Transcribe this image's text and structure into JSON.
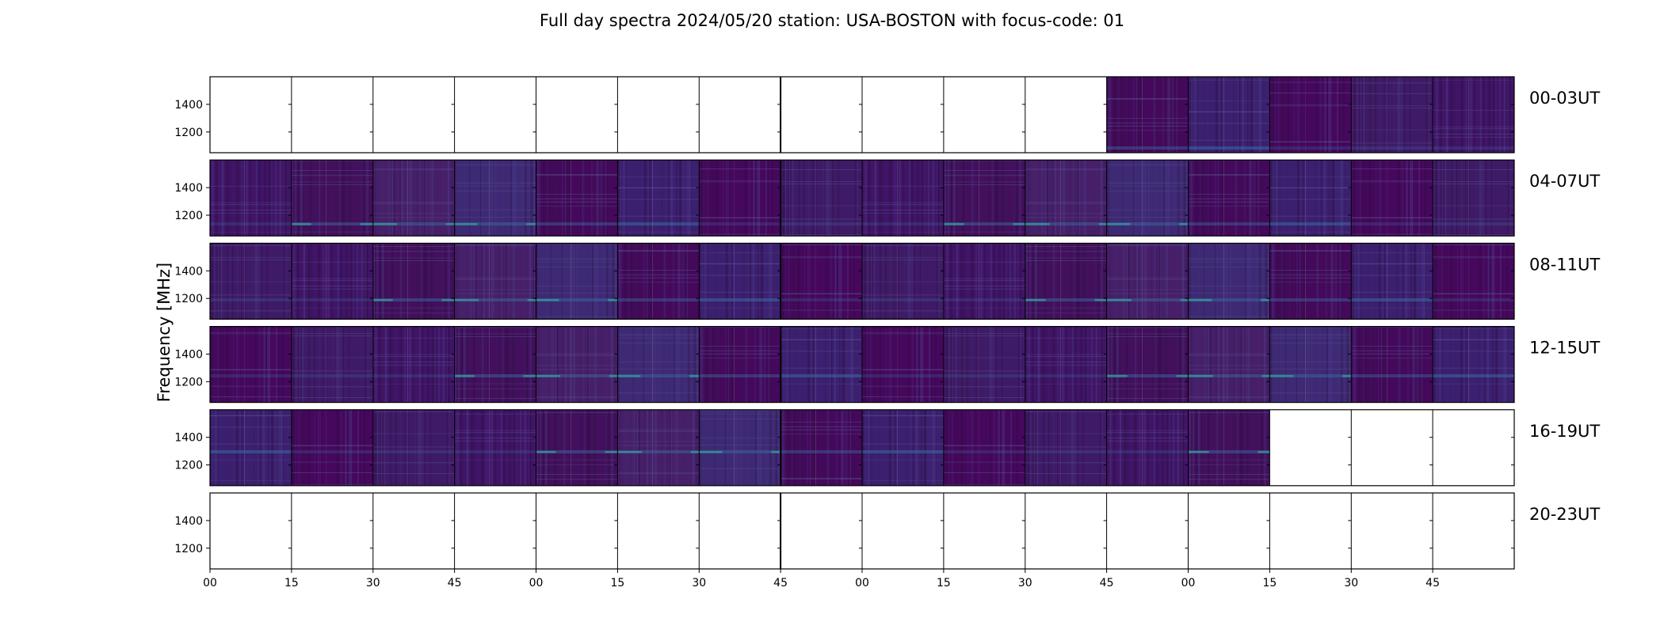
{
  "chart_data": {
    "type": "heatmap",
    "title": "Full day spectra 2024/05/20 station: USA-BOSTON with focus-code: 01",
    "ylabel": "Frequency [MHz]",
    "xlabel": "",
    "yticks": [
      "1400",
      "1200"
    ],
    "ylim": [
      1050,
      1600
    ],
    "xticks": [
      "00",
      "15",
      "30",
      "45",
      "00",
      "15",
      "30",
      "45",
      "00",
      "15",
      "30",
      "45",
      "00",
      "15",
      "30",
      "45"
    ],
    "rows": [
      {
        "label": "00-03UT",
        "panels": [
          0,
          0,
          0,
          0,
          0,
          0,
          0,
          0,
          0,
          0,
          0,
          1,
          1,
          1,
          1,
          1
        ]
      },
      {
        "label": "04-07UT",
        "panels": [
          1,
          1,
          1,
          1,
          1,
          1,
          1,
          1,
          1,
          1,
          1,
          1,
          1,
          1,
          1,
          1
        ]
      },
      {
        "label": "08-11UT",
        "panels": [
          1,
          1,
          1,
          1,
          1,
          1,
          1,
          1,
          1,
          1,
          1,
          1,
          1,
          1,
          1,
          1
        ]
      },
      {
        "label": "12-15UT",
        "panels": [
          1,
          1,
          1,
          1,
          1,
          1,
          1,
          1,
          1,
          1,
          1,
          1,
          1,
          1,
          1,
          1
        ]
      },
      {
        "label": "16-19UT",
        "panels": [
          1,
          1,
          1,
          1,
          1,
          1,
          1,
          1,
          1,
          1,
          1,
          1,
          1,
          0,
          0,
          0
        ]
      },
      {
        "label": "20-23UT",
        "panels": [
          0,
          0,
          0,
          0,
          0,
          0,
          0,
          0,
          0,
          0,
          0,
          0,
          0,
          0,
          0,
          0
        ]
      }
    ],
    "colormap": {
      "low": "#440154",
      "mid": "#3b2a7a",
      "high": "#21918c"
    }
  }
}
